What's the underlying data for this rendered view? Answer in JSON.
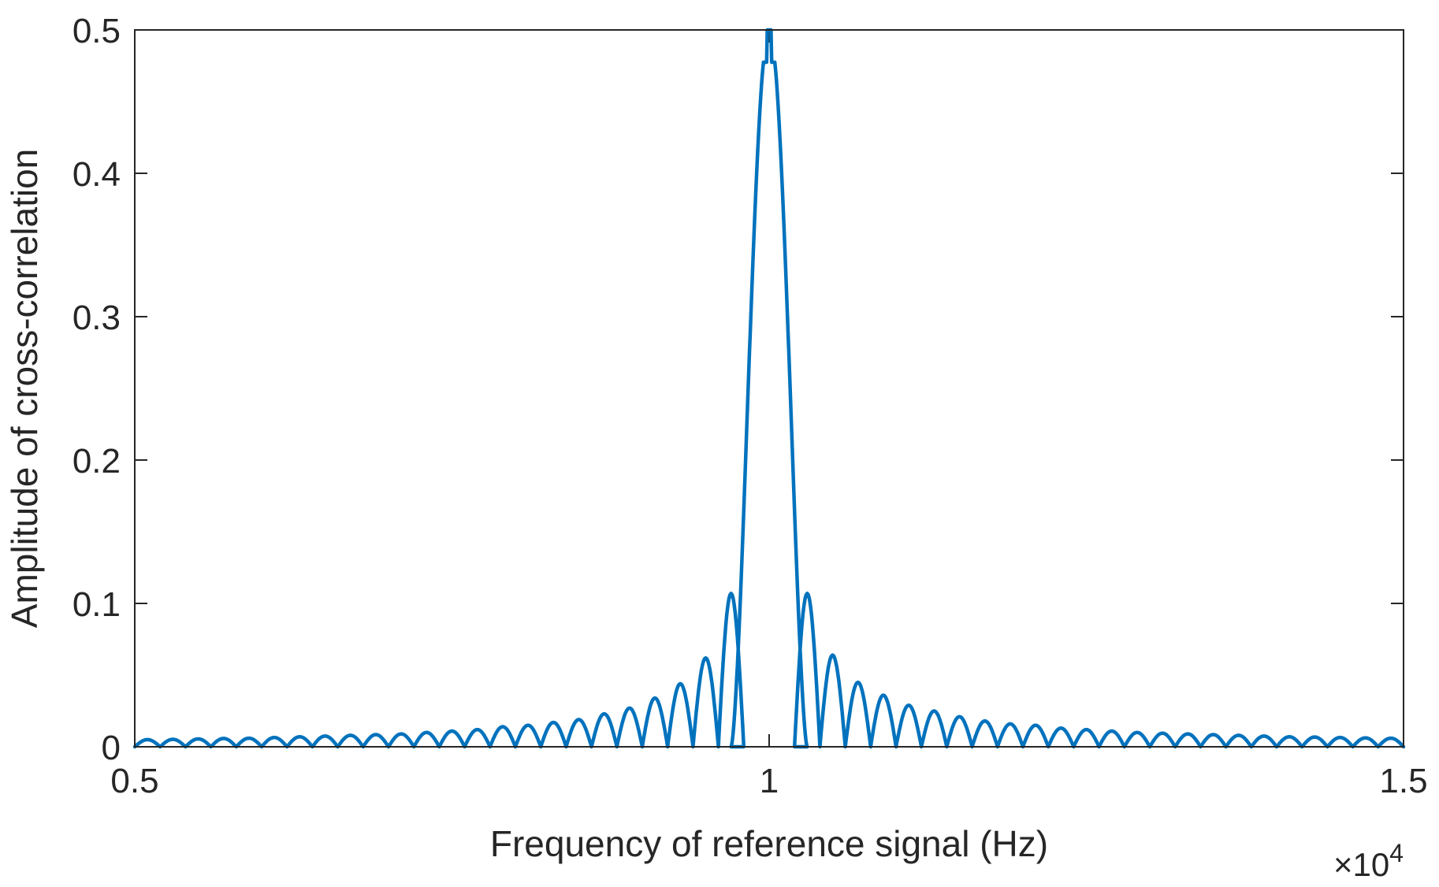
{
  "chart_data": {
    "type": "line",
    "xlabel": "Frequency of reference signal (Hz)",
    "ylabel": "Amplitude of cross-correlation",
    "x_exponent_multiplier": "×10",
    "x_exponent_power": "4",
    "xlim": [
      5000,
      15000
    ],
    "ylim": [
      0,
      0.5
    ],
    "xticks": [
      5000,
      10000,
      15000
    ],
    "xtick_labels": [
      "0.5",
      "1",
      "1.5"
    ],
    "yticks": [
      0,
      0.1,
      0.2,
      0.3,
      0.4,
      0.5
    ],
    "ytick_labels": [
      "0",
      "0.1",
      "0.2",
      "0.3",
      "0.4",
      "0.5"
    ],
    "grid": false,
    "box": true,
    "series": [
      {
        "color": "#0072BD",
        "peak": {
          "x": 10000,
          "y": 0.5
        },
        "lobe_spacing_hz": 200,
        "side_lobe_peaks_left": [
          {
            "x": 9700,
            "y": 0.107
          },
          {
            "x": 9500,
            "y": 0.062
          },
          {
            "x": 9300,
            "y": 0.044
          },
          {
            "x": 9100,
            "y": 0.034
          },
          {
            "x": 8900,
            "y": 0.027
          },
          {
            "x": 8700,
            "y": 0.023
          },
          {
            "x": 8500,
            "y": 0.019
          },
          {
            "x": 8300,
            "y": 0.017
          },
          {
            "x": 8100,
            "y": 0.015
          },
          {
            "x": 7900,
            "y": 0.014
          },
          {
            "x": 7700,
            "y": 0.012
          },
          {
            "x": 7500,
            "y": 0.011
          },
          {
            "x": 7300,
            "y": 0.01
          },
          {
            "x": 7100,
            "y": 0.009
          },
          {
            "x": 6900,
            "y": 0.0085
          },
          {
            "x": 6700,
            "y": 0.008
          },
          {
            "x": 6500,
            "y": 0.0075
          },
          {
            "x": 6300,
            "y": 0.007
          },
          {
            "x": 6100,
            "y": 0.0065
          },
          {
            "x": 5900,
            "y": 0.006
          },
          {
            "x": 5700,
            "y": 0.0058
          },
          {
            "x": 5500,
            "y": 0.0055
          },
          {
            "x": 5300,
            "y": 0.0052
          },
          {
            "x": 5100,
            "y": 0.005
          }
        ],
        "side_lobe_peaks_right": [
          {
            "x": 10300,
            "y": 0.107
          },
          {
            "x": 10500,
            "y": 0.064
          },
          {
            "x": 10700,
            "y": 0.045
          },
          {
            "x": 10900,
            "y": 0.036
          },
          {
            "x": 11100,
            "y": 0.029
          },
          {
            "x": 11300,
            "y": 0.025
          },
          {
            "x": 11500,
            "y": 0.021
          },
          {
            "x": 11700,
            "y": 0.018
          },
          {
            "x": 11900,
            "y": 0.016
          },
          {
            "x": 12100,
            "y": 0.015
          },
          {
            "x": 12300,
            "y": 0.013
          },
          {
            "x": 12500,
            "y": 0.012
          },
          {
            "x": 12700,
            "y": 0.011
          },
          {
            "x": 12900,
            "y": 0.01
          },
          {
            "x": 13100,
            "y": 0.0095
          },
          {
            "x": 13300,
            "y": 0.009
          },
          {
            "x": 13500,
            "y": 0.0085
          },
          {
            "x": 13700,
            "y": 0.008
          },
          {
            "x": 13900,
            "y": 0.0075
          },
          {
            "x": 14100,
            "y": 0.007
          },
          {
            "x": 14300,
            "y": 0.0068
          },
          {
            "x": 14500,
            "y": 0.0065
          },
          {
            "x": 14700,
            "y": 0.0062
          },
          {
            "x": 14900,
            "y": 0.006
          }
        ]
      }
    ]
  }
}
